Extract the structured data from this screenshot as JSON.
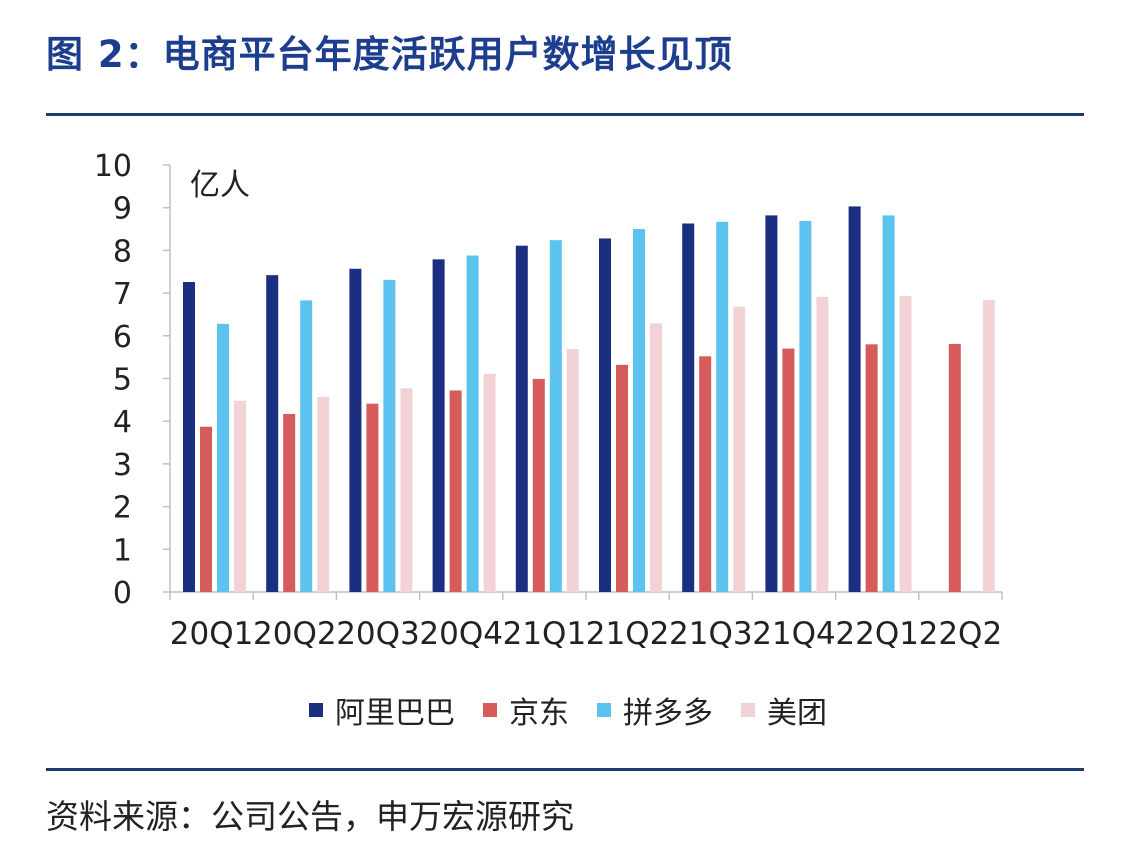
{
  "header": {
    "title": "图 2：电商平台年度活跃用户数增长见顶"
  },
  "footer": {
    "source": "资料来源：公司公告，申万宏源研究"
  },
  "chart_data": {
    "type": "bar",
    "title": "电商平台年度活跃用户数增长见顶",
    "unit_label": "亿人",
    "ylim": [
      0,
      10
    ],
    "yticks": [
      "0",
      "1",
      "2",
      "3",
      "4",
      "5",
      "6",
      "7",
      "8",
      "9",
      "10"
    ],
    "categories": [
      "20Q1",
      "20Q2",
      "20Q3",
      "20Q4",
      "21Q1",
      "21Q2",
      "21Q3",
      "21Q4",
      "22Q1",
      "22Q2"
    ],
    "series": [
      {
        "name": "阿里巴巴",
        "color": "#1b2f80",
        "values": [
          7.26,
          7.42,
          7.57,
          7.79,
          8.11,
          8.28,
          8.63,
          8.82,
          9.03,
          null
        ]
      },
      {
        "name": "京东",
        "color": "#d65b5b",
        "values": [
          3.87,
          4.17,
          4.41,
          4.72,
          4.99,
          5.32,
          5.52,
          5.7,
          5.8,
          5.81
        ]
      },
      {
        "name": "拼多多",
        "color": "#5cc3ee",
        "values": [
          6.28,
          6.83,
          7.31,
          7.88,
          8.24,
          8.5,
          8.67,
          8.69,
          8.82,
          null
        ]
      },
      {
        "name": "美团",
        "color": "#f2d3d5",
        "values": [
          4.48,
          4.57,
          4.77,
          5.11,
          5.69,
          6.29,
          6.68,
          6.91,
          6.93,
          6.84
        ]
      }
    ]
  }
}
